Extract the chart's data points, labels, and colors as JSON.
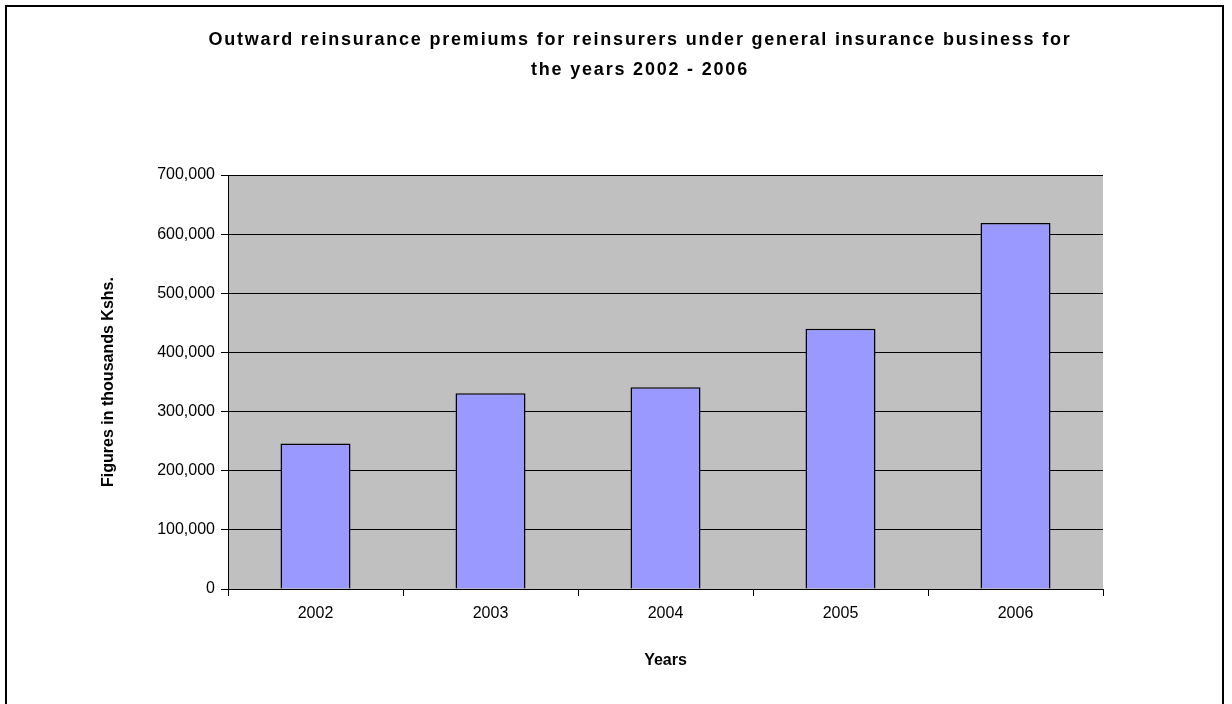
{
  "chart_data": {
    "type": "bar",
    "title": "Outward reinsurance premiums for reinsurers under general insurance business for the years 2002 - 2006",
    "xlabel": "Years",
    "ylabel": "Figures in thousands Kshs.",
    "categories": [
      "2002",
      "2003",
      "2004",
      "2005",
      "2006"
    ],
    "values": [
      246000,
      331000,
      341000,
      440000,
      619000
    ],
    "color": "#9999ff",
    "ylim": [
      0,
      700000
    ],
    "yticks": [
      {
        "value": 0,
        "label": "0"
      },
      {
        "value": 100000,
        "label": "100,000"
      },
      {
        "value": 200000,
        "label": "200,000"
      },
      {
        "value": 300000,
        "label": "300,000"
      },
      {
        "value": 400000,
        "label": "400,000"
      },
      {
        "value": 500000,
        "label": "500,000"
      },
      {
        "value": 600000,
        "label": "600,000"
      },
      {
        "value": 700000,
        "label": "700,000"
      }
    ],
    "grid": "y"
  }
}
